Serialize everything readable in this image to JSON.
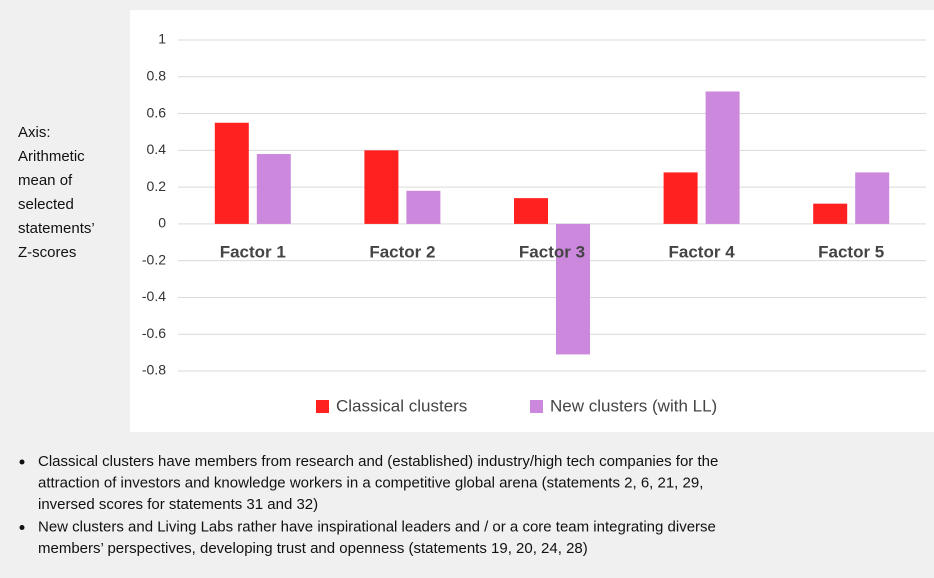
{
  "chart_data": {
    "type": "bar",
    "y_axis_label": [
      "Axis:",
      "Arithmetic",
      "mean of",
      "selected",
      "statements’",
      "Z-scores"
    ],
    "categories": [
      "Factor 1",
      "Factor 2",
      "Factor 3",
      "Factor 4",
      "Factor 5"
    ],
    "series": [
      {
        "name": "Classical clusters",
        "color": "#ff2020",
        "values": [
          0.55,
          0.4,
          0.14,
          0.28,
          0.11
        ]
      },
      {
        "name": "New clusters (with LL)",
        "color": "#cc88dd",
        "values": [
          0.38,
          0.18,
          -0.71,
          0.72,
          0.28
        ]
      }
    ],
    "ylim": [
      -0.8,
      1
    ],
    "yticks": [
      1,
      0.8,
      0.6,
      0.4,
      0.2,
      0,
      -0.2,
      -0.4,
      -0.6,
      -0.8
    ],
    "grid": true,
    "legend": "bottom"
  },
  "notes": [
    [
      "Classical clusters have members from research and (established) industry/high tech companies for the",
      "attraction of investors and knowledge workers in a competitive global arena (statements 2, 6, 21, 29,",
      "inversed scores for statements 31 and 32)"
    ],
    [
      "New clusters and Living Labs rather have inspirational leaders and / or a core team integrating diverse",
      "members’ perspectives, developing trust and openness (statements 19, 20, 24, 28)"
    ]
  ]
}
